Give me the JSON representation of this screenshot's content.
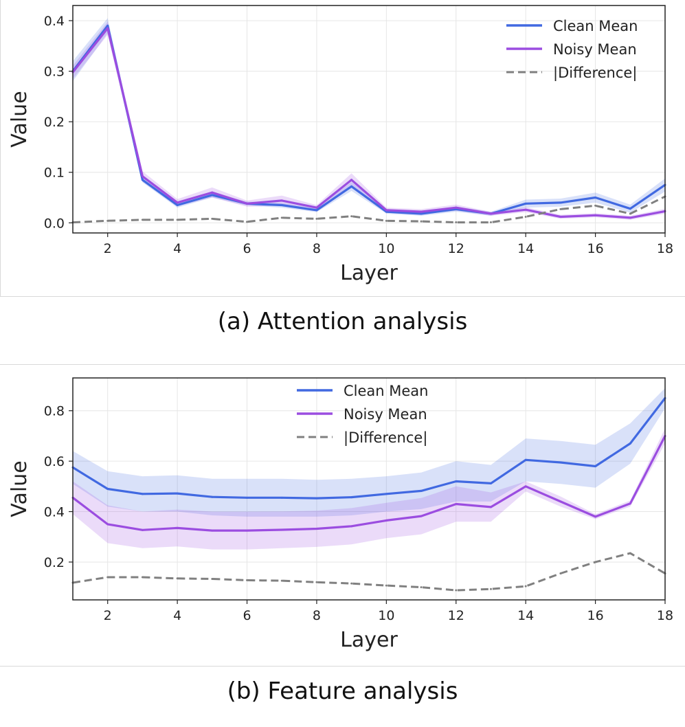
{
  "colors": {
    "clean": "#4169e1",
    "noisy": "#9b4de0",
    "difference": "#808080"
  },
  "captions": {
    "a": "(a) Attention analysis",
    "b": "(b) Feature analysis"
  },
  "chart_data": [
    {
      "type": "line",
      "title": "",
      "xlabel": "Layer",
      "ylabel": "Value",
      "xlim": [
        1,
        18
      ],
      "ylim": [
        -0.02,
        0.43
      ],
      "xticks": [
        2,
        4,
        6,
        8,
        10,
        12,
        14,
        16,
        18
      ],
      "xtick_labels": [
        "2",
        "4",
        "6",
        "8",
        "10",
        "12",
        "14",
        "16",
        "18"
      ],
      "yticks": [
        0.0,
        0.1,
        0.2,
        0.3,
        0.4
      ],
      "ytick_labels": [
        "0.0",
        "0.1",
        "0.2",
        "0.3",
        "0.4"
      ],
      "grid": true,
      "legend_position": "top-right",
      "x": [
        1,
        2,
        3,
        4,
        5,
        6,
        7,
        8,
        9,
        10,
        11,
        12,
        13,
        14,
        15,
        16,
        17,
        18
      ],
      "series": [
        {
          "name": "Clean Mean",
          "style": "solid",
          "values": [
            0.3,
            0.39,
            0.085,
            0.035,
            0.055,
            0.038,
            0.035,
            0.025,
            0.072,
            0.022,
            0.018,
            0.027,
            0.018,
            0.038,
            0.04,
            0.05,
            0.028,
            0.075
          ],
          "band_lower": [
            0.28,
            0.375,
            0.08,
            0.03,
            0.05,
            0.034,
            0.03,
            0.021,
            0.063,
            0.018,
            0.014,
            0.022,
            0.014,
            0.03,
            0.032,
            0.04,
            0.02,
            0.062
          ],
          "band_upper": [
            0.32,
            0.405,
            0.09,
            0.04,
            0.06,
            0.042,
            0.04,
            0.029,
            0.081,
            0.026,
            0.022,
            0.032,
            0.022,
            0.046,
            0.048,
            0.06,
            0.036,
            0.088
          ]
        },
        {
          "name": "Noisy Mean",
          "style": "solid",
          "values": [
            0.298,
            0.385,
            0.092,
            0.04,
            0.06,
            0.038,
            0.044,
            0.03,
            0.085,
            0.025,
            0.022,
            0.03,
            0.018,
            0.026,
            0.012,
            0.015,
            0.01,
            0.023
          ],
          "band_lower": [
            0.285,
            0.372,
            0.082,
            0.033,
            0.05,
            0.032,
            0.034,
            0.025,
            0.072,
            0.02,
            0.017,
            0.024,
            0.014,
            0.021,
            0.008,
            0.011,
            0.006,
            0.018
          ],
          "band_upper": [
            0.311,
            0.398,
            0.102,
            0.047,
            0.07,
            0.044,
            0.054,
            0.035,
            0.098,
            0.03,
            0.027,
            0.036,
            0.022,
            0.031,
            0.016,
            0.019,
            0.014,
            0.028
          ]
        },
        {
          "name": "|Difference|",
          "style": "dashed",
          "values": [
            0.001,
            0.004,
            0.006,
            0.006,
            0.008,
            0.002,
            0.01,
            0.008,
            0.013,
            0.004,
            0.003,
            0.001,
            0.001,
            0.012,
            0.027,
            0.034,
            0.018,
            0.052
          ]
        }
      ]
    },
    {
      "type": "line",
      "title": "",
      "xlabel": "Layer",
      "ylabel": "Value",
      "xlim": [
        1,
        18
      ],
      "ylim": [
        0.05,
        0.93
      ],
      "xticks": [
        2,
        4,
        6,
        8,
        10,
        12,
        14,
        16,
        18
      ],
      "xtick_labels": [
        "2",
        "4",
        "6",
        "8",
        "10",
        "12",
        "14",
        "16",
        "18"
      ],
      "yticks": [
        0.2,
        0.4,
        0.6,
        0.8
      ],
      "ytick_labels": [
        "0.2",
        "0.4",
        "0.6",
        "0.8"
      ],
      "grid": true,
      "legend_position": "top-center",
      "x": [
        1,
        2,
        3,
        4,
        5,
        6,
        7,
        8,
        9,
        10,
        11,
        12,
        13,
        14,
        15,
        16,
        17,
        18
      ],
      "series": [
        {
          "name": "Clean Mean",
          "style": "solid",
          "values": [
            0.575,
            0.49,
            0.47,
            0.472,
            0.458,
            0.455,
            0.455,
            0.453,
            0.457,
            0.47,
            0.482,
            0.52,
            0.512,
            0.605,
            0.595,
            0.58,
            0.67,
            0.85
          ],
          "band_lower": [
            0.51,
            0.42,
            0.4,
            0.4,
            0.385,
            0.38,
            0.38,
            0.38,
            0.385,
            0.4,
            0.41,
            0.44,
            0.44,
            0.52,
            0.51,
            0.495,
            0.59,
            0.81
          ],
          "band_upper": [
            0.64,
            0.56,
            0.54,
            0.544,
            0.53,
            0.53,
            0.53,
            0.526,
            0.53,
            0.54,
            0.555,
            0.6,
            0.585,
            0.69,
            0.68,
            0.665,
            0.75,
            0.89
          ]
        },
        {
          "name": "Noisy Mean",
          "style": "solid",
          "values": [
            0.455,
            0.35,
            0.327,
            0.335,
            0.325,
            0.325,
            0.328,
            0.332,
            0.342,
            0.365,
            0.382,
            0.43,
            0.418,
            0.5,
            0.44,
            0.38,
            0.432,
            0.7
          ],
          "band_lower": [
            0.39,
            0.275,
            0.255,
            0.262,
            0.25,
            0.25,
            0.255,
            0.26,
            0.27,
            0.295,
            0.31,
            0.36,
            0.36,
            0.48,
            0.42,
            0.37,
            0.42,
            0.67
          ],
          "band_upper": [
            0.52,
            0.425,
            0.4,
            0.408,
            0.4,
            0.4,
            0.401,
            0.404,
            0.414,
            0.435,
            0.454,
            0.5,
            0.476,
            0.52,
            0.46,
            0.39,
            0.444,
            0.73
          ]
        },
        {
          "name": "|Difference|",
          "style": "dashed",
          "values": [
            0.118,
            0.14,
            0.14,
            0.135,
            0.133,
            0.128,
            0.126,
            0.12,
            0.115,
            0.107,
            0.1,
            0.088,
            0.093,
            0.104,
            0.155,
            0.2,
            0.235,
            0.155
          ]
        }
      ]
    }
  ]
}
